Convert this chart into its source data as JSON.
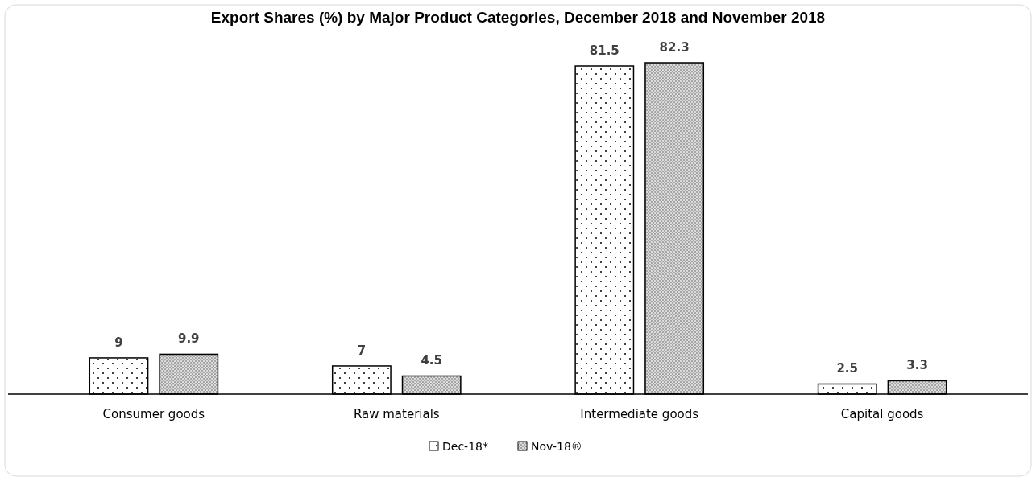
{
  "chart_data": {
    "type": "bar",
    "title": "Export Shares (%) by Major Product Categories, December 2018 and November 2018",
    "categories": [
      "Consumer goods",
      "Raw materials",
      "Intermediate goods",
      "Capital goods"
    ],
    "series": [
      {
        "name": "Dec-18*",
        "color": "#ffffff",
        "values": [
          9,
          7,
          81.5,
          2.5
        ]
      },
      {
        "name": "Nov-18®",
        "color": "#a6a6a6",
        "values": [
          9.9,
          4.5,
          82.3,
          3.3
        ]
      }
    ],
    "data_labels": true,
    "legend": "bottom"
  }
}
